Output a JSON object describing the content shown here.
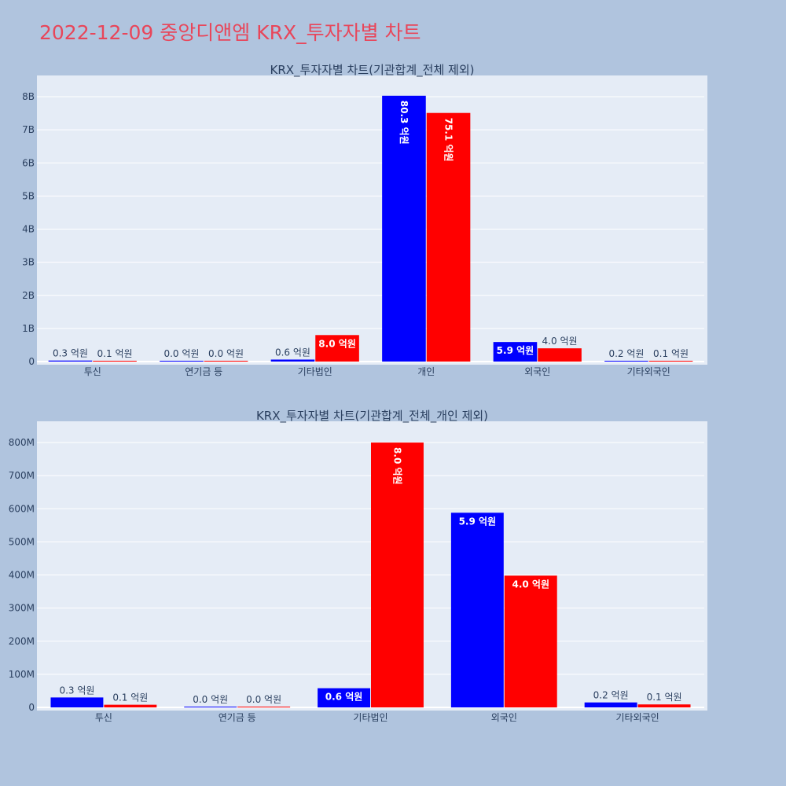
{
  "page": {
    "title": "2022-12-09 중앙디앤엠 KRX_투자자별 차트"
  },
  "colors": {
    "series1": "#0000ff",
    "series2": "#ff0000",
    "plot_bg": "#e5ecf6",
    "page_bg": "#b0c4de",
    "title": "#e8465a"
  },
  "chart_data": [
    {
      "type": "bar",
      "title": "KRX_투자자별 차트(기관합계_전체 제외)",
      "categories": [
        "투신",
        "연기금 등",
        "기타법인",
        "개인",
        "외국인",
        "기타외국인"
      ],
      "series": [
        {
          "values": [
            30000000,
            2000000,
            60000000,
            8030000000,
            590000000,
            20000000
          ],
          "labels": [
            "0.3 억원",
            "0.0 억원",
            "0.6 억원",
            "80.3 억원",
            "5.9 억원",
            "0.2 억원"
          ]
        },
        {
          "values": [
            10000000,
            2000000,
            800000000,
            7510000000,
            400000000,
            10000000
          ],
          "labels": [
            "0.1 억원",
            "0.0 억원",
            "8.0 억원",
            "75.1 억원",
            "4.0 억원",
            "0.1 억원"
          ]
        }
      ],
      "ylim": [
        0,
        8500000000
      ],
      "yticks": [
        0,
        1000000000,
        2000000000,
        3000000000,
        4000000000,
        5000000000,
        6000000000,
        7000000000,
        8000000000
      ],
      "ytick_labels": [
        "0",
        "1B",
        "2B",
        "3B",
        "4B",
        "5B",
        "6B",
        "7B",
        "8B"
      ]
    },
    {
      "type": "bar",
      "title": "KRX_투자자별 차트(기관합계_전체_개인 제외)",
      "categories": [
        "투신",
        "연기금 등",
        "기타법인",
        "외국인",
        "기타외국인"
      ],
      "series": [
        {
          "values": [
            30000000,
            2000000,
            58000000,
            588000000,
            15000000
          ],
          "labels": [
            "0.3 억원",
            "0.0 억원",
            "0.6 억원",
            "5.9 억원",
            "0.2 억원"
          ]
        },
        {
          "values": [
            8000000,
            2000000,
            800000000,
            398000000,
            9000000
          ],
          "labels": [
            "0.1 억원",
            "0.0 억원",
            "8.0 억원",
            "4.0 억원",
            "0.1 억원"
          ]
        }
      ],
      "ylim": [
        0,
        850000000
      ],
      "yticks": [
        0,
        100000000,
        200000000,
        300000000,
        400000000,
        500000000,
        600000000,
        700000000,
        800000000
      ],
      "ytick_labels": [
        "0",
        "100M",
        "200M",
        "300M",
        "400M",
        "500M",
        "600M",
        "700M",
        "800M"
      ]
    }
  ]
}
